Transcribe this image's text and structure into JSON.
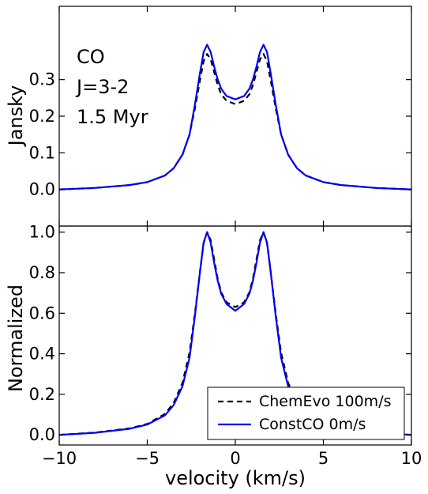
{
  "chart_data": [
    {
      "type": "line",
      "panel": "top",
      "ylabel": "Jansky",
      "xlim": [
        -10,
        10
      ],
      "ylim": [
        -0.1,
        0.5
      ],
      "yticks": [
        0.0,
        0.1,
        0.2,
        0.3
      ],
      "ytick_labels": [
        "0.0",
        "0.1",
        "0.2",
        "0.3"
      ],
      "annotations": [
        "CO",
        "J=3-2",
        "1.5 Myr"
      ],
      "series": [
        {
          "name": "ChemEvo 100m/s",
          "color": "#000000",
          "dash": "dashed",
          "x": [
            -10,
            -8,
            -6,
            -5,
            -4,
            -3.5,
            -3,
            -2.6,
            -2.3,
            -2.0,
            -1.8,
            -1.6,
            -1.4,
            -1.2,
            -1.0,
            -0.8,
            -0.5,
            0,
            0.5,
            0.8,
            1.0,
            1.2,
            1.4,
            1.6,
            1.8,
            2.0,
            2.3,
            2.6,
            3,
            3.5,
            4,
            5,
            6,
            8,
            10
          ],
          "y": [
            0.0,
            0.004,
            0.012,
            0.02,
            0.038,
            0.058,
            0.095,
            0.15,
            0.22,
            0.3,
            0.35,
            0.37,
            0.355,
            0.32,
            0.285,
            0.26,
            0.242,
            0.233,
            0.242,
            0.26,
            0.285,
            0.32,
            0.355,
            0.37,
            0.35,
            0.3,
            0.22,
            0.15,
            0.095,
            0.058,
            0.038,
            0.02,
            0.012,
            0.004,
            0.0
          ]
        },
        {
          "name": "ConstCO 0m/s",
          "color": "#0000ee",
          "dash": "solid",
          "x": [
            -10,
            -8,
            -6,
            -5,
            -4,
            -3.5,
            -3,
            -2.6,
            -2.3,
            -2.0,
            -1.8,
            -1.6,
            -1.4,
            -1.2,
            -1.0,
            -0.8,
            -0.5,
            0,
            0.5,
            0.8,
            1.0,
            1.2,
            1.4,
            1.6,
            1.8,
            2.0,
            2.3,
            2.6,
            3,
            3.5,
            4,
            5,
            6,
            8,
            10
          ],
          "y": [
            0.0,
            0.004,
            0.012,
            0.02,
            0.038,
            0.058,
            0.095,
            0.15,
            0.23,
            0.32,
            0.375,
            0.395,
            0.375,
            0.335,
            0.3,
            0.275,
            0.255,
            0.246,
            0.255,
            0.275,
            0.3,
            0.335,
            0.375,
            0.395,
            0.375,
            0.32,
            0.23,
            0.15,
            0.095,
            0.058,
            0.038,
            0.02,
            0.012,
            0.004,
            0.0
          ]
        }
      ]
    },
    {
      "type": "line",
      "panel": "bottom",
      "xlabel": "velocity (km/s)",
      "ylabel": "Normalized",
      "xlim": [
        -10,
        10
      ],
      "ylim": [
        -0.05,
        1.03
      ],
      "xticks": [
        -10,
        -5,
        0,
        5,
        10
      ],
      "xtick_labels": [
        "−10",
        "−5",
        "0",
        "5",
        "10"
      ],
      "yticks": [
        0.0,
        0.2,
        0.4,
        0.6,
        0.8,
        1.0
      ],
      "ytick_labels": [
        "0.0",
        "0.2",
        "0.4",
        "0.6",
        "0.8",
        "1.0"
      ],
      "legend": {
        "placement": "lower-right"
      },
      "series": [
        {
          "name": "ChemEvo 100m/s",
          "color": "#000000",
          "dash": "dashed",
          "x": [
            -10,
            -8,
            -6,
            -5,
            -4,
            -3.5,
            -3,
            -2.6,
            -2.3,
            -2.0,
            -1.8,
            -1.6,
            -1.4,
            -1.2,
            -1.0,
            -0.8,
            -0.5,
            0,
            0.5,
            0.8,
            1.0,
            1.2,
            1.4,
            1.6,
            1.8,
            2.0,
            2.3,
            2.6,
            3,
            3.5,
            4,
            5,
            6,
            8,
            10
          ],
          "y": [
            0.0,
            0.011,
            0.032,
            0.054,
            0.103,
            0.157,
            0.257,
            0.405,
            0.595,
            0.81,
            0.946,
            1.0,
            0.96,
            0.865,
            0.77,
            0.703,
            0.654,
            0.63,
            0.654,
            0.703,
            0.77,
            0.865,
            0.96,
            1.0,
            0.946,
            0.81,
            0.595,
            0.405,
            0.257,
            0.157,
            0.103,
            0.054,
            0.032,
            0.011,
            0.0
          ]
        },
        {
          "name": "ConstCO 0m/s",
          "color": "#0000ee",
          "dash": "solid",
          "x": [
            -10,
            -8,
            -6,
            -5,
            -4,
            -3.5,
            -3,
            -2.6,
            -2.3,
            -2.0,
            -1.8,
            -1.6,
            -1.4,
            -1.2,
            -1.0,
            -0.8,
            -0.5,
            0,
            0.5,
            0.8,
            1.0,
            1.2,
            1.4,
            1.6,
            1.8,
            2.0,
            2.3,
            2.6,
            3,
            3.5,
            4,
            5,
            6,
            8,
            10
          ],
          "y": [
            0.0,
            0.01,
            0.03,
            0.051,
            0.096,
            0.147,
            0.24,
            0.38,
            0.582,
            0.81,
            0.949,
            1.0,
            0.949,
            0.848,
            0.76,
            0.696,
            0.646,
            0.612,
            0.646,
            0.696,
            0.76,
            0.848,
            0.949,
            1.0,
            0.949,
            0.81,
            0.582,
            0.38,
            0.24,
            0.147,
            0.096,
            0.051,
            0.03,
            0.01,
            0.0
          ]
        }
      ]
    }
  ]
}
